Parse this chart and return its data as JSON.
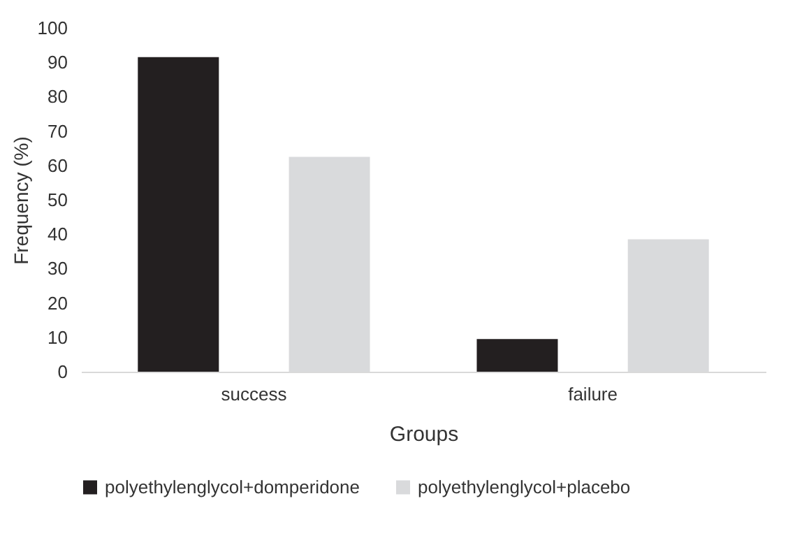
{
  "chart_data": {
    "type": "bar",
    "xlabel": "Groups",
    "ylabel": "Frequency (%)",
    "categories": [
      "success",
      "failure"
    ],
    "series": [
      {
        "name": "polyethylenglycol+domperidone",
        "color": "#231f20",
        "values": [
          91.5,
          9.5
        ]
      },
      {
        "name": "polyethylenglycol+placebo",
        "color": "#d9dadc",
        "values": [
          62.5,
          38.5
        ]
      }
    ],
    "ylim": [
      0,
      100
    ],
    "yticks": [
      0,
      10,
      20,
      30,
      40,
      50,
      60,
      70,
      80,
      90,
      100
    ],
    "grid": false,
    "legend": "bottom"
  }
}
